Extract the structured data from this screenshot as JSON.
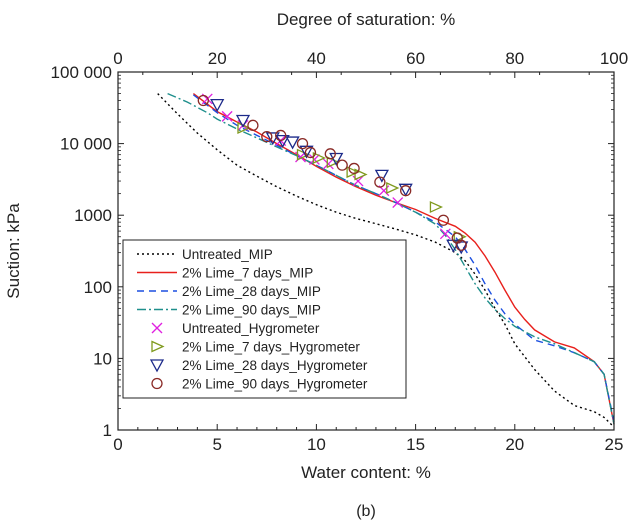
{
  "chart_data": {
    "type": "scatter",
    "caption": "(b)",
    "x_axis": {
      "label": "Water content: %",
      "range": [
        0,
        25
      ],
      "ticks": [
        0,
        5,
        10,
        15,
        20,
        25
      ]
    },
    "x2_axis": {
      "label": "Degree of saturation: %",
      "range": [
        0,
        100
      ],
      "ticks": [
        0,
        20,
        40,
        60,
        80,
        100
      ]
    },
    "y_axis": {
      "label": "Suction: kPa",
      "scale": "log",
      "range": [
        1,
        100000
      ],
      "ticks": [
        1,
        10,
        100,
        1000,
        10000,
        100000
      ],
      "tick_labels": [
        "1",
        "10",
        "100",
        "1000",
        "10 000",
        "100 000"
      ]
    },
    "grid": false,
    "legend_position": "lower-left",
    "series": [
      {
        "name": "Untreated_MIP",
        "kind": "line",
        "color": "#000000",
        "dash": "2,3",
        "x": [
          2,
          3,
          4,
          5,
          6,
          7,
          8,
          9,
          10,
          11,
          12,
          13,
          14,
          15,
          16,
          17,
          17.5,
          18,
          18.5,
          19,
          19.5,
          20,
          21,
          22,
          23,
          24,
          24.5,
          25
        ],
        "y": [
          50000,
          26000,
          14000,
          8200,
          5000,
          3500,
          2500,
          1850,
          1400,
          1100,
          900,
          760,
          640,
          530,
          420,
          300,
          230,
          150,
          90,
          50,
          30,
          16,
          7,
          3.5,
          2.2,
          1.8,
          1.5,
          1.1
        ]
      },
      {
        "name": "2% Lime_7 days_MIP",
        "kind": "line",
        "color": "#e8201c",
        "dash": "",
        "x": [
          3.8,
          5,
          6,
          7,
          8,
          9,
          10,
          11,
          12,
          13,
          14,
          15,
          16,
          17,
          17.5,
          18,
          18.5,
          19,
          19.5,
          20,
          20.5,
          21,
          22,
          23,
          24,
          24.5,
          25
        ],
        "y": [
          50000,
          28000,
          20000,
          14500,
          10000,
          7000,
          4800,
          3400,
          2500,
          1900,
          1500,
          1200,
          900,
          700,
          560,
          420,
          270,
          160,
          90,
          52,
          35,
          25,
          17,
          14,
          9,
          6,
          1.2
        ]
      },
      {
        "name": "2% Lime_28 days_MIP",
        "kind": "line",
        "color": "#1b4fe0",
        "dash": "7,5",
        "x": [
          3.8,
          5,
          6,
          7,
          8,
          9,
          10,
          11,
          12,
          13,
          14,
          15,
          16,
          17,
          17.5,
          18,
          18.5,
          19,
          19.5,
          20,
          21,
          22,
          23,
          24,
          24.5,
          25
        ],
        "y": [
          48000,
          27000,
          18000,
          13000,
          9500,
          6800,
          5000,
          3600,
          2600,
          2000,
          1500,
          1100,
          800,
          500,
          330,
          200,
          110,
          65,
          42,
          30,
          18,
          15,
          12,
          9,
          6,
          1.3
        ]
      },
      {
        "name": "2% Lime_90 days_MIP",
        "kind": "line",
        "color": "#1f8f8c",
        "dash": "9,3,2,3",
        "x": [
          2.5,
          3.5,
          4.5,
          5,
          6,
          7,
          8,
          9,
          10,
          11,
          12,
          13,
          14,
          15,
          16,
          16.5,
          17,
          17.5,
          18,
          18.5,
          19,
          19.5,
          20,
          21,
          22,
          23,
          24,
          24.5,
          25
        ],
        "y": [
          50000,
          38000,
          27000,
          22000,
          16000,
          12000,
          9000,
          6800,
          5000,
          3600,
          2600,
          2000,
          1500,
          1100,
          750,
          520,
          330,
          190,
          110,
          70,
          48,
          36,
          28,
          20,
          16,
          12,
          9,
          6,
          1.2
        ]
      },
      {
        "name": "Untreated_Hygrometer",
        "kind": "marker",
        "marker": "x",
        "color": "#e020e0",
        "x": [
          4.5,
          5.5,
          6.3,
          8.2,
          9.2,
          9.9,
          10.6,
          12.1,
          13.4,
          14.1,
          16.5
        ],
        "y": [
          42000,
          24000,
          18000,
          11000,
          6500,
          6000,
          5200,
          3000,
          2200,
          1500,
          550
        ]
      },
      {
        "name": "2% Lime_7 days_Hygrometer",
        "kind": "marker",
        "marker": "triangle-right",
        "color": "#7f9a1e",
        "x": [
          6.3,
          9.3,
          10.1,
          10.8,
          11.8,
          12.2,
          13.8,
          16.0,
          17.2
        ],
        "y": [
          16500,
          7000,
          6300,
          5500,
          4000,
          3700,
          2400,
          1300,
          500
        ]
      },
      {
        "name": "2% Lime_28 days_Hygrometer",
        "kind": "marker",
        "marker": "triangle-down",
        "color": "#1c2a8a",
        "x": [
          5.0,
          6.3,
          7.8,
          8.3,
          8.8,
          9.5,
          11.0,
          13.3,
          14.5,
          16.9,
          17.3
        ],
        "y": [
          35000,
          21000,
          12000,
          11000,
          10500,
          7800,
          6200,
          3600,
          2300,
          380,
          360
        ]
      },
      {
        "name": "2% Lime_90 days_Hygrometer",
        "kind": "marker",
        "marker": "circle",
        "color": "#8a2a26",
        "x": [
          4.3,
          6.8,
          7.5,
          8.2,
          9.3,
          9.7,
          10.7,
          11.3,
          11.9,
          13.2,
          14.5,
          16.4,
          17.1,
          17.3
        ],
        "y": [
          40000,
          18000,
          12500,
          13000,
          10000,
          7500,
          7200,
          5000,
          4500,
          2900,
          2200,
          850,
          480,
          380
        ]
      }
    ]
  }
}
